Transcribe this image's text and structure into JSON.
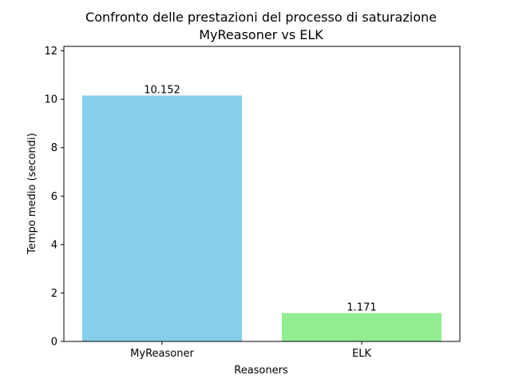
{
  "chart_data": {
    "type": "bar",
    "title": "Confronto delle prestazioni del processo di saturazione",
    "subtitle": "MyReasoner vs ELK",
    "xlabel": "Reasoners",
    "ylabel": "Tempo medio (secondi)",
    "categories": [
      "MyReasoner",
      "ELK"
    ],
    "values": [
      10.152,
      1.171
    ],
    "value_labels": [
      "10.152",
      "1.171"
    ],
    "bar_colors": [
      "#87ceeb",
      "#90ee90"
    ],
    "ylim": [
      0,
      12.1824
    ],
    "yticks": [
      0,
      2,
      4,
      6,
      8,
      10,
      12
    ],
    "grid": false,
    "legend": "none"
  }
}
